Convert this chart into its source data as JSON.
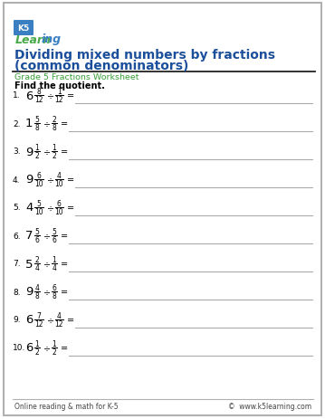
{
  "title_line1": "Dividing mixed numbers by fractions",
  "title_line2": "(common denominators)",
  "subtitle": "Grade 5 Fractions Worksheet",
  "instruction": "Find the quotient.",
  "problems": [
    {
      "num": "1.",
      "whole": "6",
      "n1": "8",
      "d1": "12",
      "n2": "1",
      "d2": "12"
    },
    {
      "num": "2.",
      "whole": "1",
      "n1": "5",
      "d1": "8",
      "n2": "2",
      "d2": "8"
    },
    {
      "num": "3.",
      "whole": "9",
      "n1": "1",
      "d1": "2",
      "n2": "1",
      "d2": "2"
    },
    {
      "num": "4.",
      "whole": "9",
      "n1": "6",
      "d1": "10",
      "n2": "4",
      "d2": "10"
    },
    {
      "num": "5.",
      "whole": "4",
      "n1": "5",
      "d1": "10",
      "n2": "6",
      "d2": "10"
    },
    {
      "num": "6.",
      "whole": "7",
      "n1": "5",
      "d1": "6",
      "n2": "5",
      "d2": "6"
    },
    {
      "num": "7.",
      "whole": "5",
      "n1": "2",
      "d1": "4",
      "n2": "1",
      "d2": "4"
    },
    {
      "num": "8.",
      "whole": "9",
      "n1": "4",
      "d1": "8",
      "n2": "6",
      "d2": "8"
    },
    {
      "num": "9.",
      "whole": "6",
      "n1": "7",
      "d1": "12",
      "n2": "4",
      "d2": "12"
    },
    {
      "num": "10.",
      "whole": "6",
      "n1": "1",
      "d1": "2",
      "n2": "1",
      "d2": "2"
    }
  ],
  "footer_left": "Online reading & math for K-5",
  "footer_right": "©  www.k5learning.com",
  "title_color": "#1b4f9b",
  "subtitle_color": "#3a9e3a",
  "border_color": "#b0b0b0",
  "line_color": "#aaaaaa",
  "title_underline_color": "#222222",
  "logo_k5_bg": "#3a7fc1",
  "logo_learn_color": "#4aaa4a",
  "logo_ing_color": "#3a7fc1"
}
